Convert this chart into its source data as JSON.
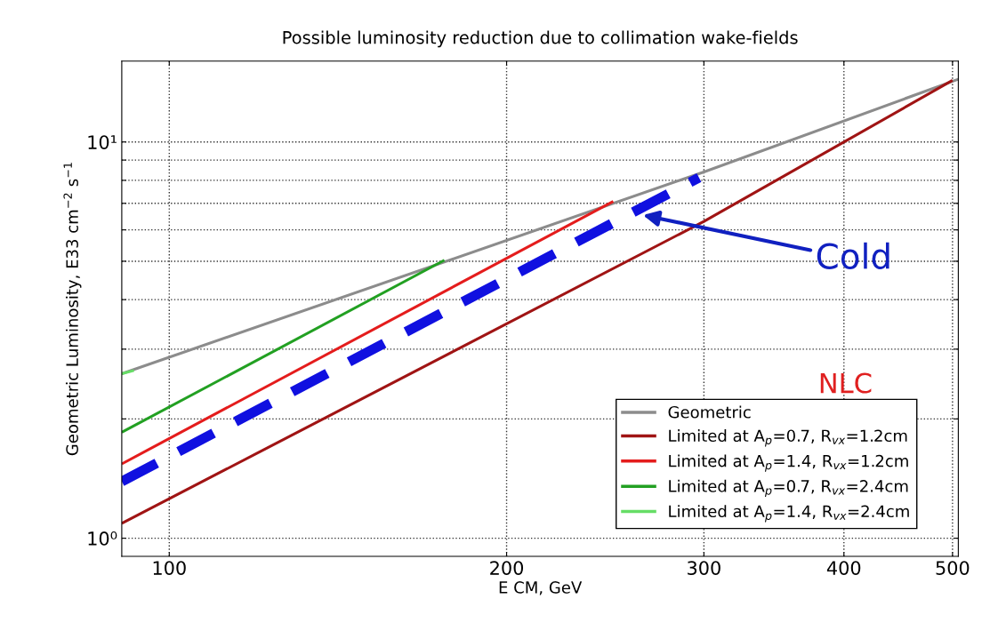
{
  "chart_data": {
    "type": "line",
    "title": "Possible luminosity reduction due to collimation wake-fields",
    "xlabel": "E CM, GeV",
    "ylabel": "Geometric Luminosity, E33 cm$^{−2}$ s$^{−1}$",
    "log": "xy",
    "grid": true,
    "legend": "bottom right",
    "marker": "none",
    "xlim": [
      90.7,
      506
    ],
    "xticks": [
      100,
      200,
      300,
      400,
      500
    ],
    "ylim": [
      0.9,
      16
    ],
    "yticks": [
      {
        "value": 1,
        "label": "10⁰"
      },
      {
        "value": 2,
        "label": null
      },
      {
        "value": 3,
        "label": null
      },
      {
        "value": 4,
        "label": null
      },
      {
        "value": 5,
        "label": null
      },
      {
        "value": 6,
        "label": null
      },
      {
        "value": 7,
        "label": null
      },
      {
        "value": 8,
        "label": null
      },
      {
        "value": 9,
        "label": null
      },
      {
        "value": 10,
        "label": "10¹"
      }
    ],
    "series": [
      {
        "name": "Geometric",
        "color": "#8c8c8c",
        "x": [
          90.7,
          300,
          506
        ],
        "values": [
          2.6,
          8.4,
          14.4
        ],
        "line_style": "solid"
      },
      {
        "name": "Limited at A$_{p}$=0.7, R$_{vx}$=1.2cm",
        "color": "#a01414",
        "x": [
          90.7,
          300,
          500
        ],
        "values": [
          1.09,
          6.3,
          14.3
        ],
        "line_style": "solid"
      },
      {
        "name": "Limited at A$_{p}$=1.4, R$_{vx}$=1.2cm",
        "color": "#e41c1c",
        "x": [
          90.7,
          249
        ],
        "values": [
          1.54,
          7.08
        ],
        "line_style": "solid"
      },
      {
        "name": "Limited at A$_{p}$=0.7, R$_{vx}$=2.4cm",
        "color": "#22a022",
        "x": [
          90.7,
          176
        ],
        "values": [
          1.85,
          5.03
        ],
        "line_style": "solid"
      },
      {
        "name": "Limited at A$_{p}$=1.4, R$_{vx}$=2.4cm",
        "color": "#66dd66",
        "x": [
          90.7,
          93
        ],
        "values": [
          2.6,
          2.65
        ],
        "line_style": "solid"
      },
      {
        "color": "#1010e0",
        "x": [
          90.7,
          297
        ],
        "values": [
          1.39,
          8.13
        ],
        "line_style": "dashed"
      }
    ],
    "annotations": [
      "Cold",
      "NLC"
    ]
  }
}
